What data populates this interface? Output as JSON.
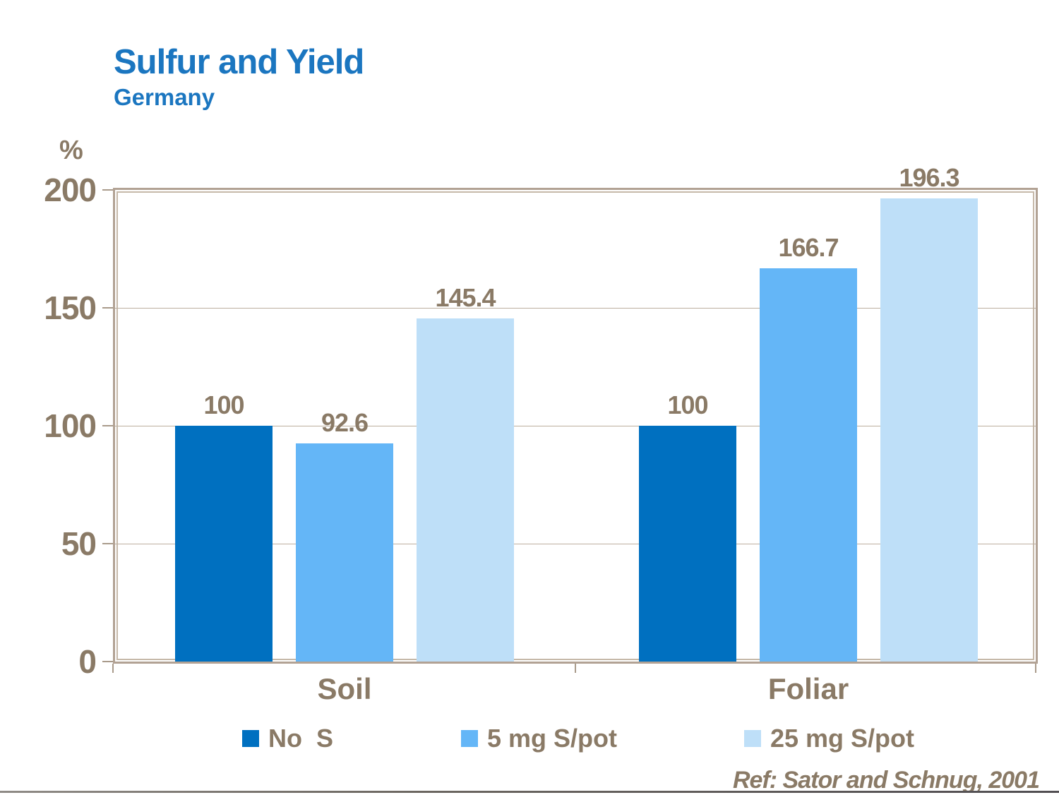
{
  "page": {
    "title": "Sulfur and Yield",
    "subtitle": "Germany",
    "reference": "Ref: Sator and Schnug, 2001"
  },
  "colors": {
    "title_blue": "#1B76C0",
    "label_brown": "#8A7A66",
    "plot_border_tan": "#B2A294",
    "gridline_tan": "#BCAE9E",
    "series_dark_blue": "#0070C0",
    "series_mid_blue": "#64B6F7",
    "series_pale_blue": "#BEDFF8",
    "bottom_rule_gray": "#6B6660"
  },
  "chart_data": {
    "type": "bar",
    "title": "Sulfur and Yield",
    "subtitle": "Germany",
    "unit_label": "%",
    "categories": [
      "Soil",
      "Foliar"
    ],
    "series": [
      {
        "name": "No  S",
        "color": "#0070C0",
        "values": [
          100,
          100
        ],
        "labels": [
          "100",
          "100"
        ]
      },
      {
        "name": "5 mg S/pot",
        "color": "#64B6F7",
        "values": [
          92.6,
          166.7
        ],
        "labels": [
          "92.6",
          "166.7"
        ]
      },
      {
        "name": "25 mg S/pot",
        "color": "#BEDFF8",
        "values": [
          145.4,
          196.3
        ],
        "labels": [
          "145.4",
          "196.3"
        ]
      }
    ],
    "ylim": [
      0,
      200
    ],
    "yticks": [
      0,
      50,
      100,
      150,
      200
    ],
    "grid": true,
    "legend_position": "bottom"
  }
}
